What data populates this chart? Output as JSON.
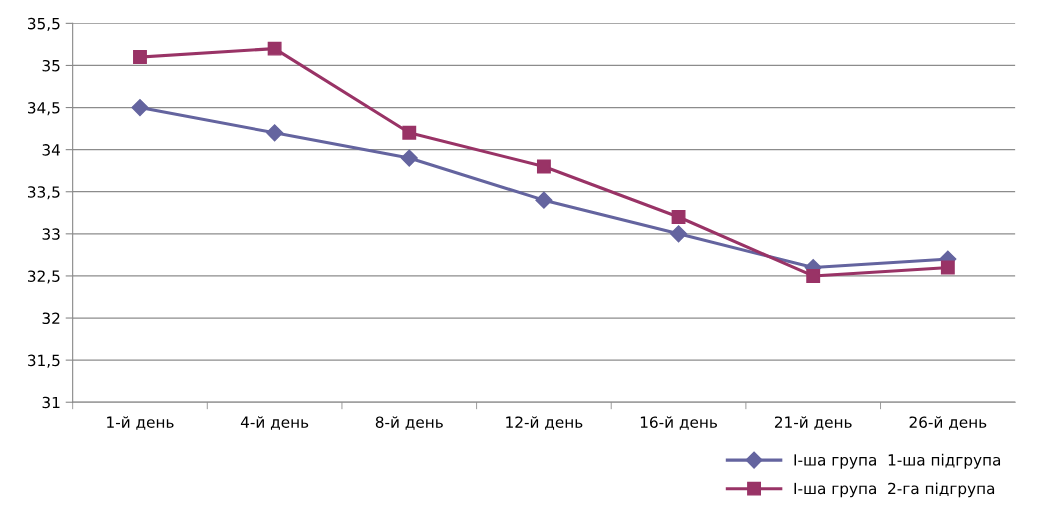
{
  "chart_data": {
    "type": "line",
    "categories": [
      "1-й день",
      "4-й день",
      "8-й день",
      "12-й день",
      "16-й день",
      "21-й день",
      "26-й день"
    ],
    "series": [
      {
        "name": "І-ша група  1-ша підгрупа",
        "color": "#64649f",
        "marker": "diamond",
        "values": [
          34.5,
          34.2,
          33.9,
          33.4,
          33.0,
          32.6,
          32.7
        ]
      },
      {
        "name": "І-ша група  2-га підгрупа",
        "color": "#993366",
        "marker": "square",
        "values": [
          35.1,
          35.2,
          34.2,
          33.8,
          33.2,
          32.5,
          32.6
        ]
      }
    ],
    "ylim": [
      31,
      35.5
    ],
    "yticks": [
      {
        "value": 31,
        "label": "31"
      },
      {
        "value": 31.5,
        "label": "31,5"
      },
      {
        "value": 32,
        "label": "32"
      },
      {
        "value": 32.5,
        "label": "32,5"
      },
      {
        "value": 33,
        "label": "33"
      },
      {
        "value": 33.5,
        "label": "33,5"
      },
      {
        "value": 34,
        "label": "34"
      },
      {
        "value": 34.5,
        "label": "34,5"
      },
      {
        "value": 35,
        "label": "35"
      },
      {
        "value": 35.5,
        "label": "35,5"
      }
    ],
    "grid": "y",
    "legend": "bottom right",
    "line_style": "solid"
  }
}
